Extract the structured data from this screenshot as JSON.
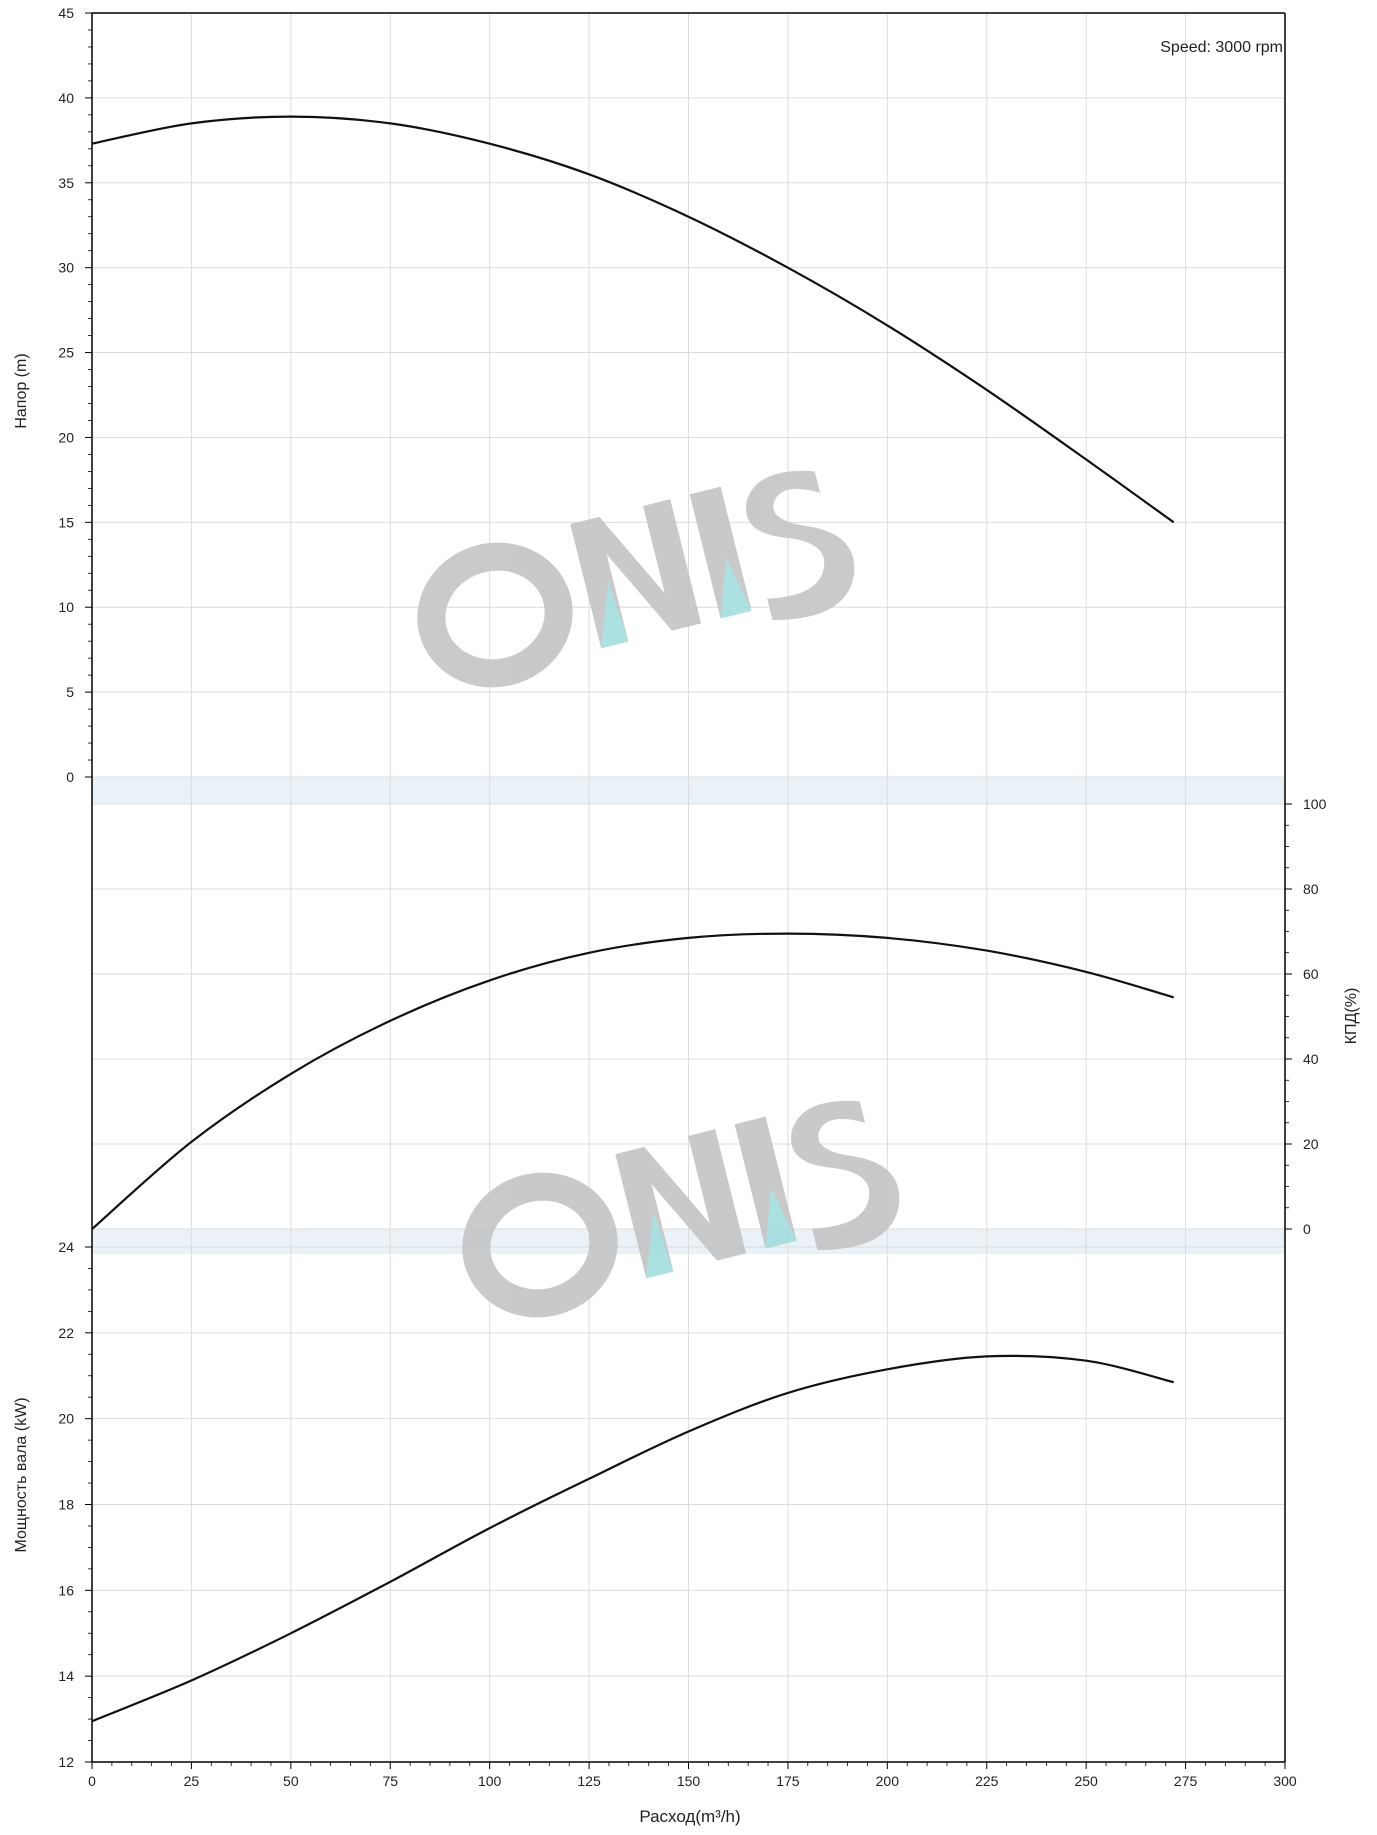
{
  "chart_data": [
    {
      "type": "line",
      "panel": "head",
      "annotation": "Speed: 3000 rpm",
      "xlabel": "",
      "ylabel": "Напор (m)",
      "xlim": [
        0,
        300
      ],
      "ylim": [
        0,
        45
      ],
      "yticks": [
        "0",
        "5",
        "10",
        "15",
        "20",
        "25",
        "30",
        "35",
        "40",
        "45"
      ],
      "grid": true,
      "series": [
        {
          "x": [
            0,
            25,
            50,
            75,
            100,
            125,
            150,
            175,
            200,
            225,
            250,
            272
          ],
          "y": [
            37.3,
            38.5,
            38.9,
            38.5,
            37.3,
            35.5,
            33.0,
            30.0,
            26.6,
            22.8,
            18.7,
            15.0
          ]
        }
      ]
    },
    {
      "type": "line",
      "panel": "efficiency",
      "xlabel": "",
      "ylabel": "КПД(%)",
      "xlim": [
        0,
        300
      ],
      "ylim": [
        0,
        100
      ],
      "yticks": [
        "0",
        "20",
        "40",
        "60",
        "80",
        "100"
      ],
      "grid": true,
      "series": [
        {
          "x": [
            0,
            25,
            50,
            75,
            100,
            125,
            150,
            175,
            200,
            225,
            250,
            272
          ],
          "y": [
            0,
            20.5,
            36.5,
            49,
            58.5,
            65,
            68.5,
            69.5,
            68.5,
            65.5,
            60.5,
            54.5
          ]
        }
      ]
    },
    {
      "type": "line",
      "panel": "power",
      "xlabel": "Расход(m³/h)",
      "ylabel": "Мощность вала (kW)",
      "xlim": [
        0,
        300
      ],
      "ylim": [
        12,
        24
      ],
      "xticks": [
        "0",
        "25",
        "50",
        "75",
        "100",
        "125",
        "150",
        "175",
        "200",
        "225",
        "250",
        "275",
        "300"
      ],
      "yticks": [
        "12",
        "14",
        "16",
        "18",
        "20",
        "22",
        "24"
      ],
      "grid": true,
      "series": [
        {
          "x": [
            0,
            25,
            50,
            75,
            100,
            125,
            150,
            175,
            200,
            225,
            250,
            272
          ],
          "y": [
            12.95,
            13.9,
            15.0,
            16.2,
            17.45,
            18.6,
            19.7,
            20.6,
            21.15,
            21.45,
            21.35,
            20.85
          ]
        }
      ]
    }
  ],
  "watermark": {
    "text": "ONIS",
    "gray": "#c4c4c4",
    "accent": "#a3dede"
  },
  "colors": {
    "grid": "#dcdcdc",
    "band": "#eaf2f8",
    "curve": "#111111",
    "axis": "#000000"
  }
}
